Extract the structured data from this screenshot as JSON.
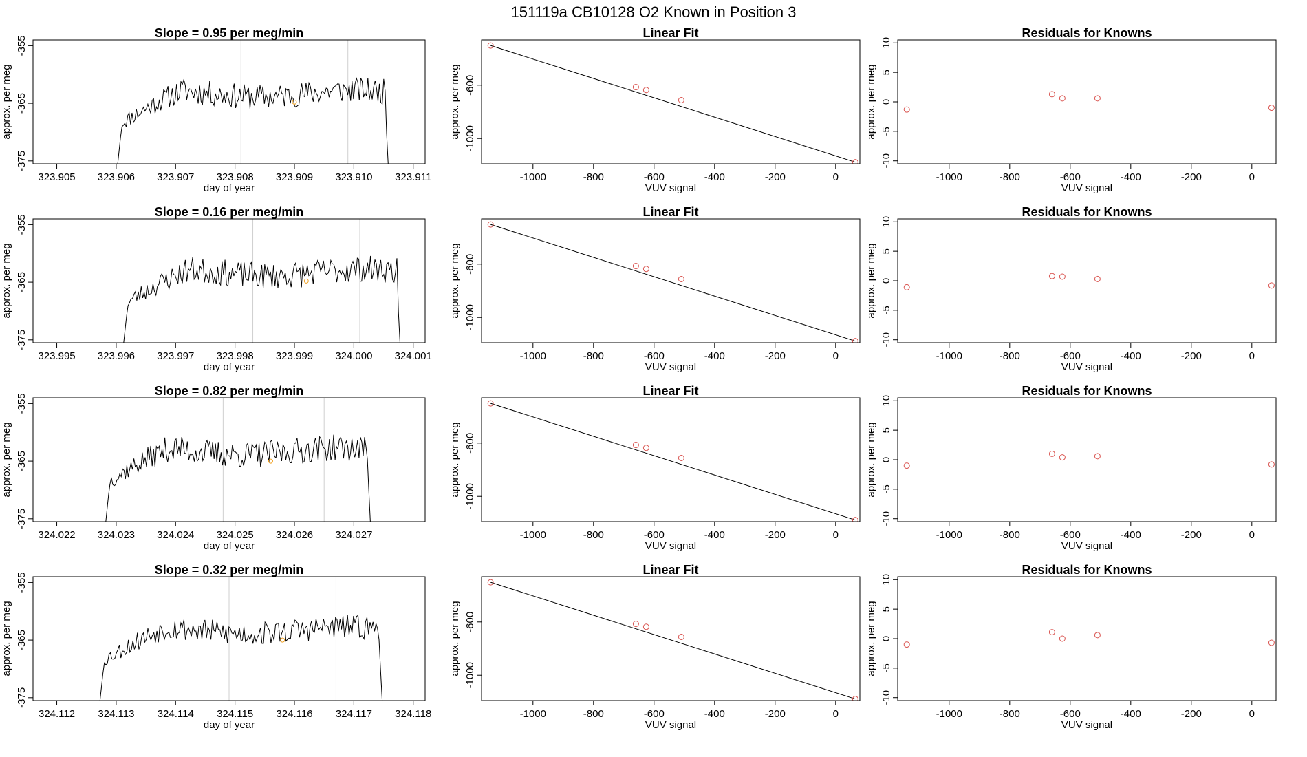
{
  "figure_title": "151119a      CB10128    O2 Known in Position  3",
  "colors": {
    "series": "#000000",
    "point": "#d9534f",
    "marker": "#f0a020",
    "vline": "#cfcfcf"
  },
  "chart_data": [
    {
      "type": "line",
      "title": "Slope =  0.95  per meg/min",
      "xlabel": "day of year",
      "ylabel": "approx. per meg",
      "xlim": [
        323.9046,
        323.9112
      ],
      "ylim": [
        -375.5,
        -354
      ],
      "xticks": [
        323.905,
        323.906,
        323.907,
        323.908,
        323.909,
        323.91,
        323.911
      ],
      "xtick_labels": [
        "323.905",
        "323.906",
        "323.907",
        "323.908",
        "323.909",
        "323.910",
        "323.911"
      ],
      "yticks": [
        -375,
        -365,
        -355
      ],
      "ytick_labels": [
        "-375",
        "-365",
        "-355"
      ],
      "series_range": [
        323.906,
        323.9106
      ],
      "vlines": [
        323.9081,
        323.9099
      ],
      "marker": {
        "x": 323.909,
        "y": -364.8
      },
      "noise_seed": 11,
      "noise_amp": 2.2
    },
    {
      "type": "scatter",
      "title": "Linear Fit",
      "xlabel": "VUV signal",
      "ylabel": "approx. per meg",
      "xlim": [
        -1170,
        80
      ],
      "ylim": [
        -1190,
        -260
      ],
      "xticks": [
        -1000,
        -800,
        -600,
        -400,
        -200,
        0
      ],
      "xtick_labels": [
        "-1000",
        "-800",
        "-600",
        "-400",
        "-200",
        "0"
      ],
      "yticks": [
        -1000,
        -600
      ],
      "ytick_labels": [
        "-1000",
        "-600"
      ],
      "points": [
        [
          -1140,
          -302
        ],
        [
          -660,
          -614
        ],
        [
          -626,
          -636
        ],
        [
          -510,
          -712
        ],
        [
          65,
          -1178
        ]
      ],
      "fit_line": [
        [
          -1140,
          -302
        ],
        [
          65,
          -1178
        ]
      ]
    },
    {
      "type": "scatter",
      "title": "Residuals for Knowns",
      "xlabel": "VUV signal",
      "ylabel": "approx. per meg",
      "xlim": [
        -1170,
        80
      ],
      "ylim": [
        -10.5,
        10.5
      ],
      "xticks": [
        -1000,
        -800,
        -600,
        -400,
        -200,
        0
      ],
      "xtick_labels": [
        "-1000",
        "-800",
        "-600",
        "-400",
        "-200",
        "0"
      ],
      "yticks": [
        -10,
        -5,
        0,
        5,
        10
      ],
      "ytick_labels": [
        "-10",
        "-5",
        "0",
        "5",
        "10"
      ],
      "points": [
        [
          -1140,
          -1.3
        ],
        [
          -660,
          1.3
        ],
        [
          -626,
          0.6
        ],
        [
          -510,
          0.6
        ],
        [
          65,
          -1.0
        ]
      ]
    },
    {
      "type": "line",
      "title": "Slope =  0.16  per meg/min",
      "xlabel": "day of year",
      "ylabel": "approx. per meg",
      "xlim": [
        323.9946,
        324.0012
      ],
      "ylim": [
        -375.5,
        -354
      ],
      "xticks": [
        323.995,
        323.996,
        323.997,
        323.998,
        323.999,
        324.0,
        324.001
      ],
      "xtick_labels": [
        "323.995",
        "323.996",
        "323.997",
        "323.998",
        "323.999",
        "324.000",
        "324.001"
      ],
      "yticks": [
        -375,
        -365,
        -355
      ],
      "ytick_labels": [
        "-375",
        "-365",
        "-355"
      ],
      "series_range": [
        323.9961,
        324.0008
      ],
      "vlines": [
        323.9983,
        324.0001
      ],
      "marker": {
        "x": 323.9992,
        "y": -364.8
      },
      "noise_seed": 23,
      "noise_amp": 2.3
    },
    {
      "type": "scatter",
      "title": "Linear Fit",
      "xlabel": "VUV signal",
      "ylabel": "approx. per meg",
      "xlim": [
        -1170,
        80
      ],
      "ylim": [
        -1190,
        -260
      ],
      "xticks": [
        -1000,
        -800,
        -600,
        -400,
        -200,
        0
      ],
      "xtick_labels": [
        "-1000",
        "-800",
        "-600",
        "-400",
        "-200",
        "0"
      ],
      "yticks": [
        -1000,
        -600
      ],
      "ytick_labels": [
        "-1000",
        "-600"
      ],
      "points": [
        [
          -1140,
          -302
        ],
        [
          -660,
          -614
        ],
        [
          -626,
          -636
        ],
        [
          -510,
          -712
        ],
        [
          65,
          -1178
        ]
      ],
      "fit_line": [
        [
          -1140,
          -302
        ],
        [
          65,
          -1178
        ]
      ]
    },
    {
      "type": "scatter",
      "title": "Residuals for Knowns",
      "xlabel": "VUV signal",
      "ylabel": "approx. per meg",
      "xlim": [
        -1170,
        80
      ],
      "ylim": [
        -10.5,
        10.5
      ],
      "xticks": [
        -1000,
        -800,
        -600,
        -400,
        -200,
        0
      ],
      "xtick_labels": [
        "-1000",
        "-800",
        "-600",
        "-400",
        "-200",
        "0"
      ],
      "yticks": [
        -10,
        -5,
        0,
        5,
        10
      ],
      "ytick_labels": [
        "-10",
        "-5",
        "0",
        "5",
        "10"
      ],
      "points": [
        [
          -1140,
          -1.1
        ],
        [
          -660,
          0.8
        ],
        [
          -626,
          0.7
        ],
        [
          -510,
          0.3
        ],
        [
          65,
          -0.8
        ]
      ]
    },
    {
      "type": "line",
      "title": "Slope =  0.82  per meg/min",
      "xlabel": "day of year",
      "ylabel": "approx. per meg",
      "xlim": [
        324.0216,
        324.0282
      ],
      "ylim": [
        -375.5,
        -354
      ],
      "xticks": [
        324.022,
        324.023,
        324.024,
        324.025,
        324.026,
        324.027
      ],
      "xtick_labels": [
        "324.022",
        "324.023",
        "324.024",
        "324.025",
        "324.026",
        "324.027"
      ],
      "yticks": [
        -375,
        -365,
        -355
      ],
      "ytick_labels": [
        "-375",
        "-365",
        "-355"
      ],
      "series_range": [
        324.0228,
        324.0273
      ],
      "vlines": [
        324.0248,
        324.0265
      ],
      "marker": {
        "x": 324.0256,
        "y": -365
      },
      "noise_seed": 37,
      "noise_amp": 2.3
    },
    {
      "type": "scatter",
      "title": "Linear Fit",
      "xlabel": "VUV signal",
      "ylabel": "approx. per meg",
      "xlim": [
        -1170,
        80
      ],
      "ylim": [
        -1190,
        -260
      ],
      "xticks": [
        -1000,
        -800,
        -600,
        -400,
        -200,
        0
      ],
      "xtick_labels": [
        "-1000",
        "-800",
        "-600",
        "-400",
        "-200",
        "0"
      ],
      "yticks": [
        -1000,
        -600
      ],
      "ytick_labels": [
        "-1000",
        "-600"
      ],
      "points": [
        [
          -1140,
          -302
        ],
        [
          -660,
          -614
        ],
        [
          -626,
          -636
        ],
        [
          -510,
          -712
        ],
        [
          65,
          -1178
        ]
      ],
      "fit_line": [
        [
          -1140,
          -302
        ],
        [
          65,
          -1178
        ]
      ]
    },
    {
      "type": "scatter",
      "title": "Residuals for Knowns",
      "xlabel": "VUV signal",
      "ylabel": "approx. per meg",
      "xlim": [
        -1170,
        80
      ],
      "ylim": [
        -10.5,
        10.5
      ],
      "xticks": [
        -1000,
        -800,
        -600,
        -400,
        -200,
        0
      ],
      "xtick_labels": [
        "-1000",
        "-800",
        "-600",
        "-400",
        "-200",
        "0"
      ],
      "yticks": [
        -10,
        -5,
        0,
        5,
        10
      ],
      "ytick_labels": [
        "-10",
        "-5",
        "0",
        "5",
        "10"
      ],
      "points": [
        [
          -1140,
          -1.0
        ],
        [
          -660,
          1.0
        ],
        [
          -626,
          0.4
        ],
        [
          -510,
          0.6
        ],
        [
          65,
          -0.8
        ]
      ]
    },
    {
      "type": "line",
      "title": "Slope =  0.32  per meg/min",
      "xlabel": "day of year",
      "ylabel": "approx. per meg",
      "xlim": [
        324.1116,
        324.1182
      ],
      "ylim": [
        -375.5,
        -354
      ],
      "xticks": [
        324.112,
        324.113,
        324.114,
        324.115,
        324.116,
        324.117,
        324.118
      ],
      "xtick_labels": [
        "324.112",
        "324.113",
        "324.114",
        "324.115",
        "324.116",
        "324.117",
        "324.118"
      ],
      "yticks": [
        -375,
        -365,
        -355
      ],
      "ytick_labels": [
        "-375",
        "-365",
        "-355"
      ],
      "series_range": [
        324.1127,
        324.1175
      ],
      "vlines": [
        324.1149,
        324.1167
      ],
      "marker": {
        "x": 324.1158,
        "y": -365
      },
      "noise_seed": 53,
      "noise_amp": 2.1
    },
    {
      "type": "scatter",
      "title": "Linear Fit",
      "xlabel": "VUV signal",
      "ylabel": "approx. per meg",
      "xlim": [
        -1170,
        80
      ],
      "ylim": [
        -1190,
        -260
      ],
      "xticks": [
        -1000,
        -800,
        -600,
        -400,
        -200,
        0
      ],
      "xtick_labels": [
        "-1000",
        "-800",
        "-600",
        "-400",
        "-200",
        "0"
      ],
      "yticks": [
        -1000,
        -600
      ],
      "ytick_labels": [
        "-1000",
        "-600"
      ],
      "points": [
        [
          -1140,
          -302
        ],
        [
          -660,
          -614
        ],
        [
          -626,
          -636
        ],
        [
          -510,
          -712
        ],
        [
          65,
          -1178
        ]
      ],
      "fit_line": [
        [
          -1140,
          -302
        ],
        [
          65,
          -1178
        ]
      ]
    },
    {
      "type": "scatter",
      "title": "Residuals for Knowns",
      "xlabel": "VUV signal",
      "ylabel": "approx. per meg",
      "xlim": [
        -1170,
        80
      ],
      "ylim": [
        -10.5,
        10.5
      ],
      "xticks": [
        -1000,
        -800,
        -600,
        -400,
        -200,
        0
      ],
      "xtick_labels": [
        "-1000",
        "-800",
        "-600",
        "-400",
        "-200",
        "0"
      ],
      "yticks": [
        -10,
        -5,
        0,
        5,
        10
      ],
      "ytick_labels": [
        "-10",
        "-5",
        "0",
        "5",
        "10"
      ],
      "points": [
        [
          -1140,
          -1.0
        ],
        [
          -660,
          1.1
        ],
        [
          -626,
          0.0
        ],
        [
          -510,
          0.6
        ],
        [
          65,
          -0.7
        ]
      ]
    }
  ]
}
